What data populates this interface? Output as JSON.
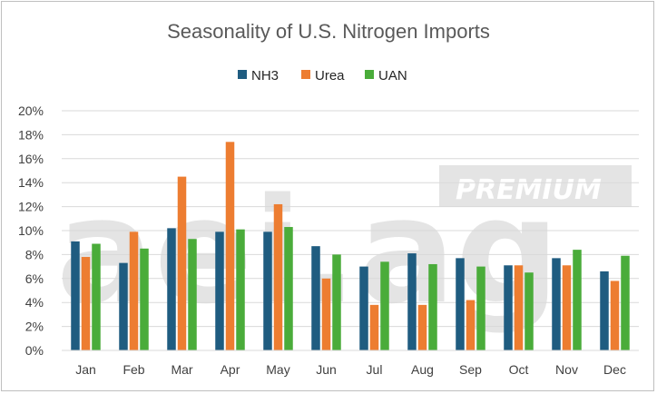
{
  "chart_data": {
    "type": "bar",
    "title": "Seasonality of U.S. Nitrogen Imports",
    "categories": [
      "Jan",
      "Feb",
      "Mar",
      "Apr",
      "May",
      "Jun",
      "Jul",
      "Aug",
      "Sep",
      "Oct",
      "Nov",
      "Dec"
    ],
    "series": [
      {
        "name": "NH3",
        "color": "#1f5c80",
        "values": [
          9.1,
          7.3,
          10.2,
          9.9,
          9.9,
          8.7,
          7.0,
          8.1,
          7.7,
          7.1,
          7.7,
          6.6
        ]
      },
      {
        "name": "Urea",
        "color": "#ed7d31",
        "values": [
          7.8,
          9.9,
          14.5,
          17.4,
          12.2,
          6.0,
          3.8,
          3.8,
          4.2,
          7.1,
          7.1,
          5.8
        ]
      },
      {
        "name": "UAN",
        "color": "#4aac3a",
        "values": [
          8.9,
          8.5,
          9.3,
          10.1,
          10.3,
          8.0,
          7.4,
          7.2,
          7.0,
          6.5,
          8.4,
          7.9
        ]
      }
    ],
    "yticks": [
      "0%",
      "2%",
      "4%",
      "6%",
      "8%",
      "10%",
      "12%",
      "14%",
      "16%",
      "18%",
      "20%"
    ],
    "ylim": [
      0,
      20
    ],
    "xlabel": "",
    "ylabel": "",
    "grid": true,
    "legend_position": "top-center"
  },
  "watermark": {
    "logo": "aei.ag",
    "badge": "PREMIUM"
  }
}
